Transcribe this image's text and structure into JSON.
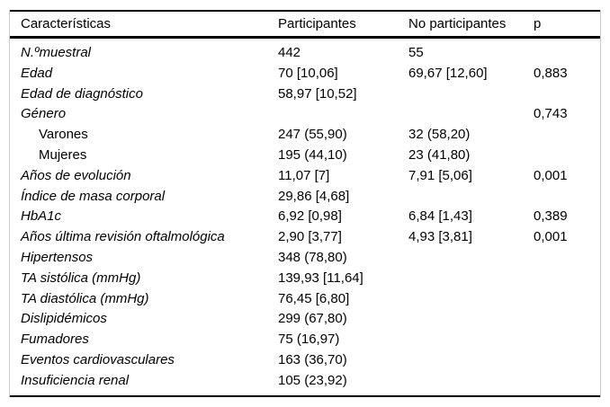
{
  "colors": {
    "background": "#ffffff",
    "text": "#000000",
    "rule": "#000000",
    "frame_border": "#c9c9c9"
  },
  "table": {
    "columns": [
      "Características",
      "Participantes",
      "No participantes",
      "p"
    ],
    "rows": [
      {
        "label": "N.ºmuestral",
        "italic": true,
        "indent": false,
        "participantes": "442",
        "no_participantes": "55",
        "p": ""
      },
      {
        "label": "Edad",
        "italic": true,
        "indent": false,
        "participantes": "70 [10,06]",
        "no_participantes": "69,67 [12,60]",
        "p": "0,883"
      },
      {
        "label": "Edad de diagnóstico",
        "italic": true,
        "indent": false,
        "participantes": "58,97 [10,52]",
        "no_participantes": "",
        "p": ""
      },
      {
        "label": "Género",
        "italic": true,
        "indent": false,
        "participantes": "",
        "no_participantes": "",
        "p": "0,743"
      },
      {
        "label": "Varones",
        "italic": false,
        "indent": true,
        "participantes": "247 (55,90)",
        "no_participantes": "32 (58,20)",
        "p": ""
      },
      {
        "label": "Mujeres",
        "italic": false,
        "indent": true,
        "participantes": "195 (44,10)",
        "no_participantes": "23 (41,80)",
        "p": ""
      },
      {
        "label": "Años de evolución",
        "italic": true,
        "indent": false,
        "participantes": "11,07 [7]",
        "no_participantes": "7,91 [5,06]",
        "p": "0,001"
      },
      {
        "label": "Índice de masa corporal",
        "italic": true,
        "indent": false,
        "participantes": "29,86 [4,68]",
        "no_participantes": "",
        "p": ""
      },
      {
        "label": "HbA1c",
        "italic": true,
        "indent": false,
        "participantes": "6,92 [0,98]",
        "no_participantes": "6,84 [1,43]",
        "p": "0,389"
      },
      {
        "label": "Años última revisión oftalmológica",
        "italic": true,
        "indent": false,
        "participantes": "2,90 [3,77]",
        "no_participantes": "4,93 [3,81]",
        "p": "0,001"
      },
      {
        "label": "Hipertensos",
        "italic": true,
        "indent": false,
        "participantes": "348 (78,80)",
        "no_participantes": "",
        "p": ""
      },
      {
        "label": "TA sistólica (mmHg)",
        "italic": true,
        "indent": false,
        "participantes": "139,93 [11,64]",
        "no_participantes": "",
        "p": ""
      },
      {
        "label": "TA diastólica (mmHg)",
        "italic": true,
        "indent": false,
        "participantes": "76,45 [6,80]",
        "no_participantes": "",
        "p": ""
      },
      {
        "label": "Dislipidémicos",
        "italic": true,
        "indent": false,
        "participantes": "299 (67,80)",
        "no_participantes": "",
        "p": ""
      },
      {
        "label": "Fumadores",
        "italic": true,
        "indent": false,
        "participantes": "75 (16,97)",
        "no_participantes": "",
        "p": ""
      },
      {
        "label": "Eventos cardiovasculares",
        "italic": true,
        "indent": false,
        "participantes": "163 (36,70)",
        "no_participantes": "",
        "p": ""
      },
      {
        "label": "Insuficiencia renal",
        "italic": true,
        "indent": false,
        "participantes": "105 (23,92)",
        "no_participantes": "",
        "p": ""
      }
    ]
  }
}
